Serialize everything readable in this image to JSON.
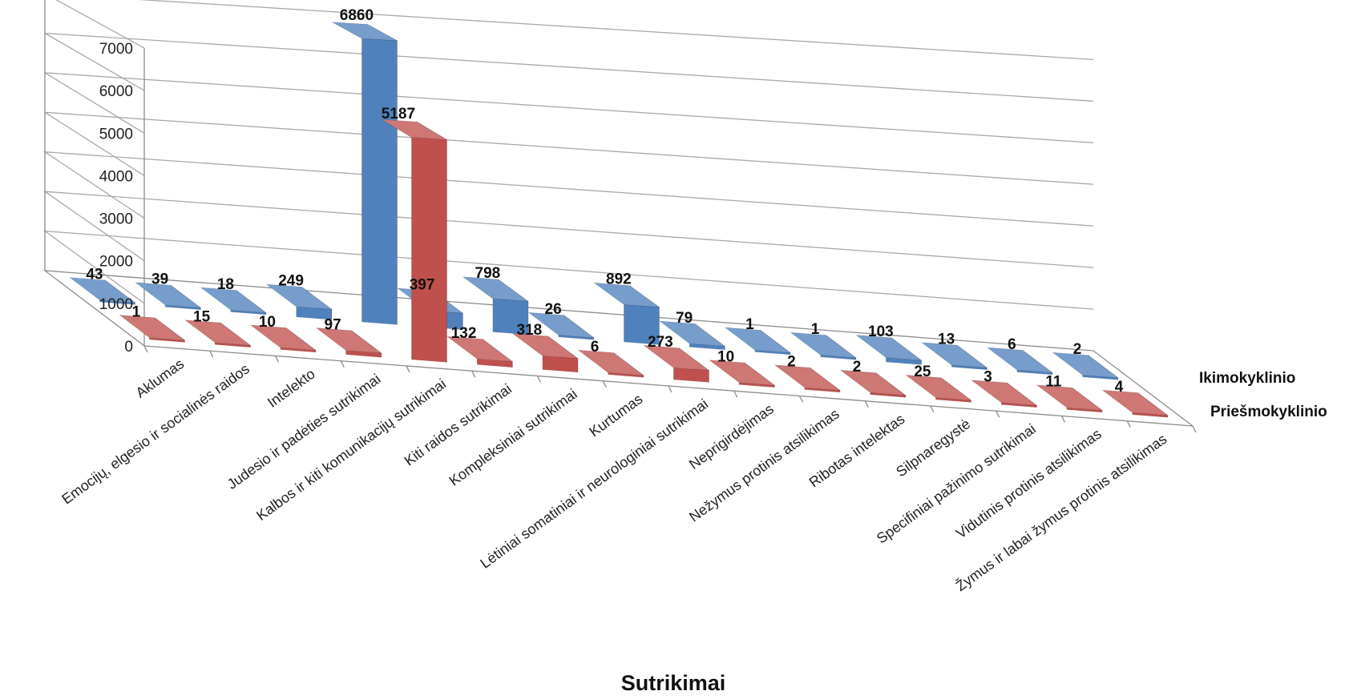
{
  "chart_data": {
    "type": "bar",
    "variant": "3d-column",
    "title": "",
    "xlabel": "Sutrikimai",
    "ylabel": "",
    "ylim": [
      0,
      7000
    ],
    "yticks": [
      0,
      1000,
      2000,
      3000,
      4000,
      5000,
      6000,
      7000
    ],
    "grid": true,
    "legend": "none",
    "categories": [
      "Aklumas",
      "Emocijų, elgesio ir socialinės raidos",
      "Intelekto",
      "Judesio ir padėties sutrikimai",
      "Kalbos ir kiti komunikacijų sutrikimai",
      "Kiti raidos sutrikimai",
      "Kompleksiniai sutrikimai",
      "Kurtumas",
      "Lėtiniai somatiniai ir neurologiniai sutrikimai",
      "Neprigirdėjimas",
      "Nežymus protinis atsilikimas",
      "Ribotas intelektas",
      "Silpnaregystė",
      "Specifiniai pažinimo sutrikimai",
      "Vidutinis protinis atsilikimas",
      "Žymus ir labai žymus protinis atsilikimas"
    ],
    "series": [
      {
        "name": "Priešmokyklinio",
        "color": "#c0504d",
        "values": [
          1,
          15,
          10,
          97,
          5187,
          132,
          318,
          6,
          273,
          10,
          2,
          2,
          25,
          3,
          11,
          4
        ]
      },
      {
        "name": "Ikimokyklinio",
        "color": "#4f81bd",
        "values": [
          43,
          39,
          18,
          249,
          6860,
          397,
          798,
          26,
          892,
          79,
          1,
          1,
          103,
          13,
          6,
          2
        ]
      }
    ]
  }
}
